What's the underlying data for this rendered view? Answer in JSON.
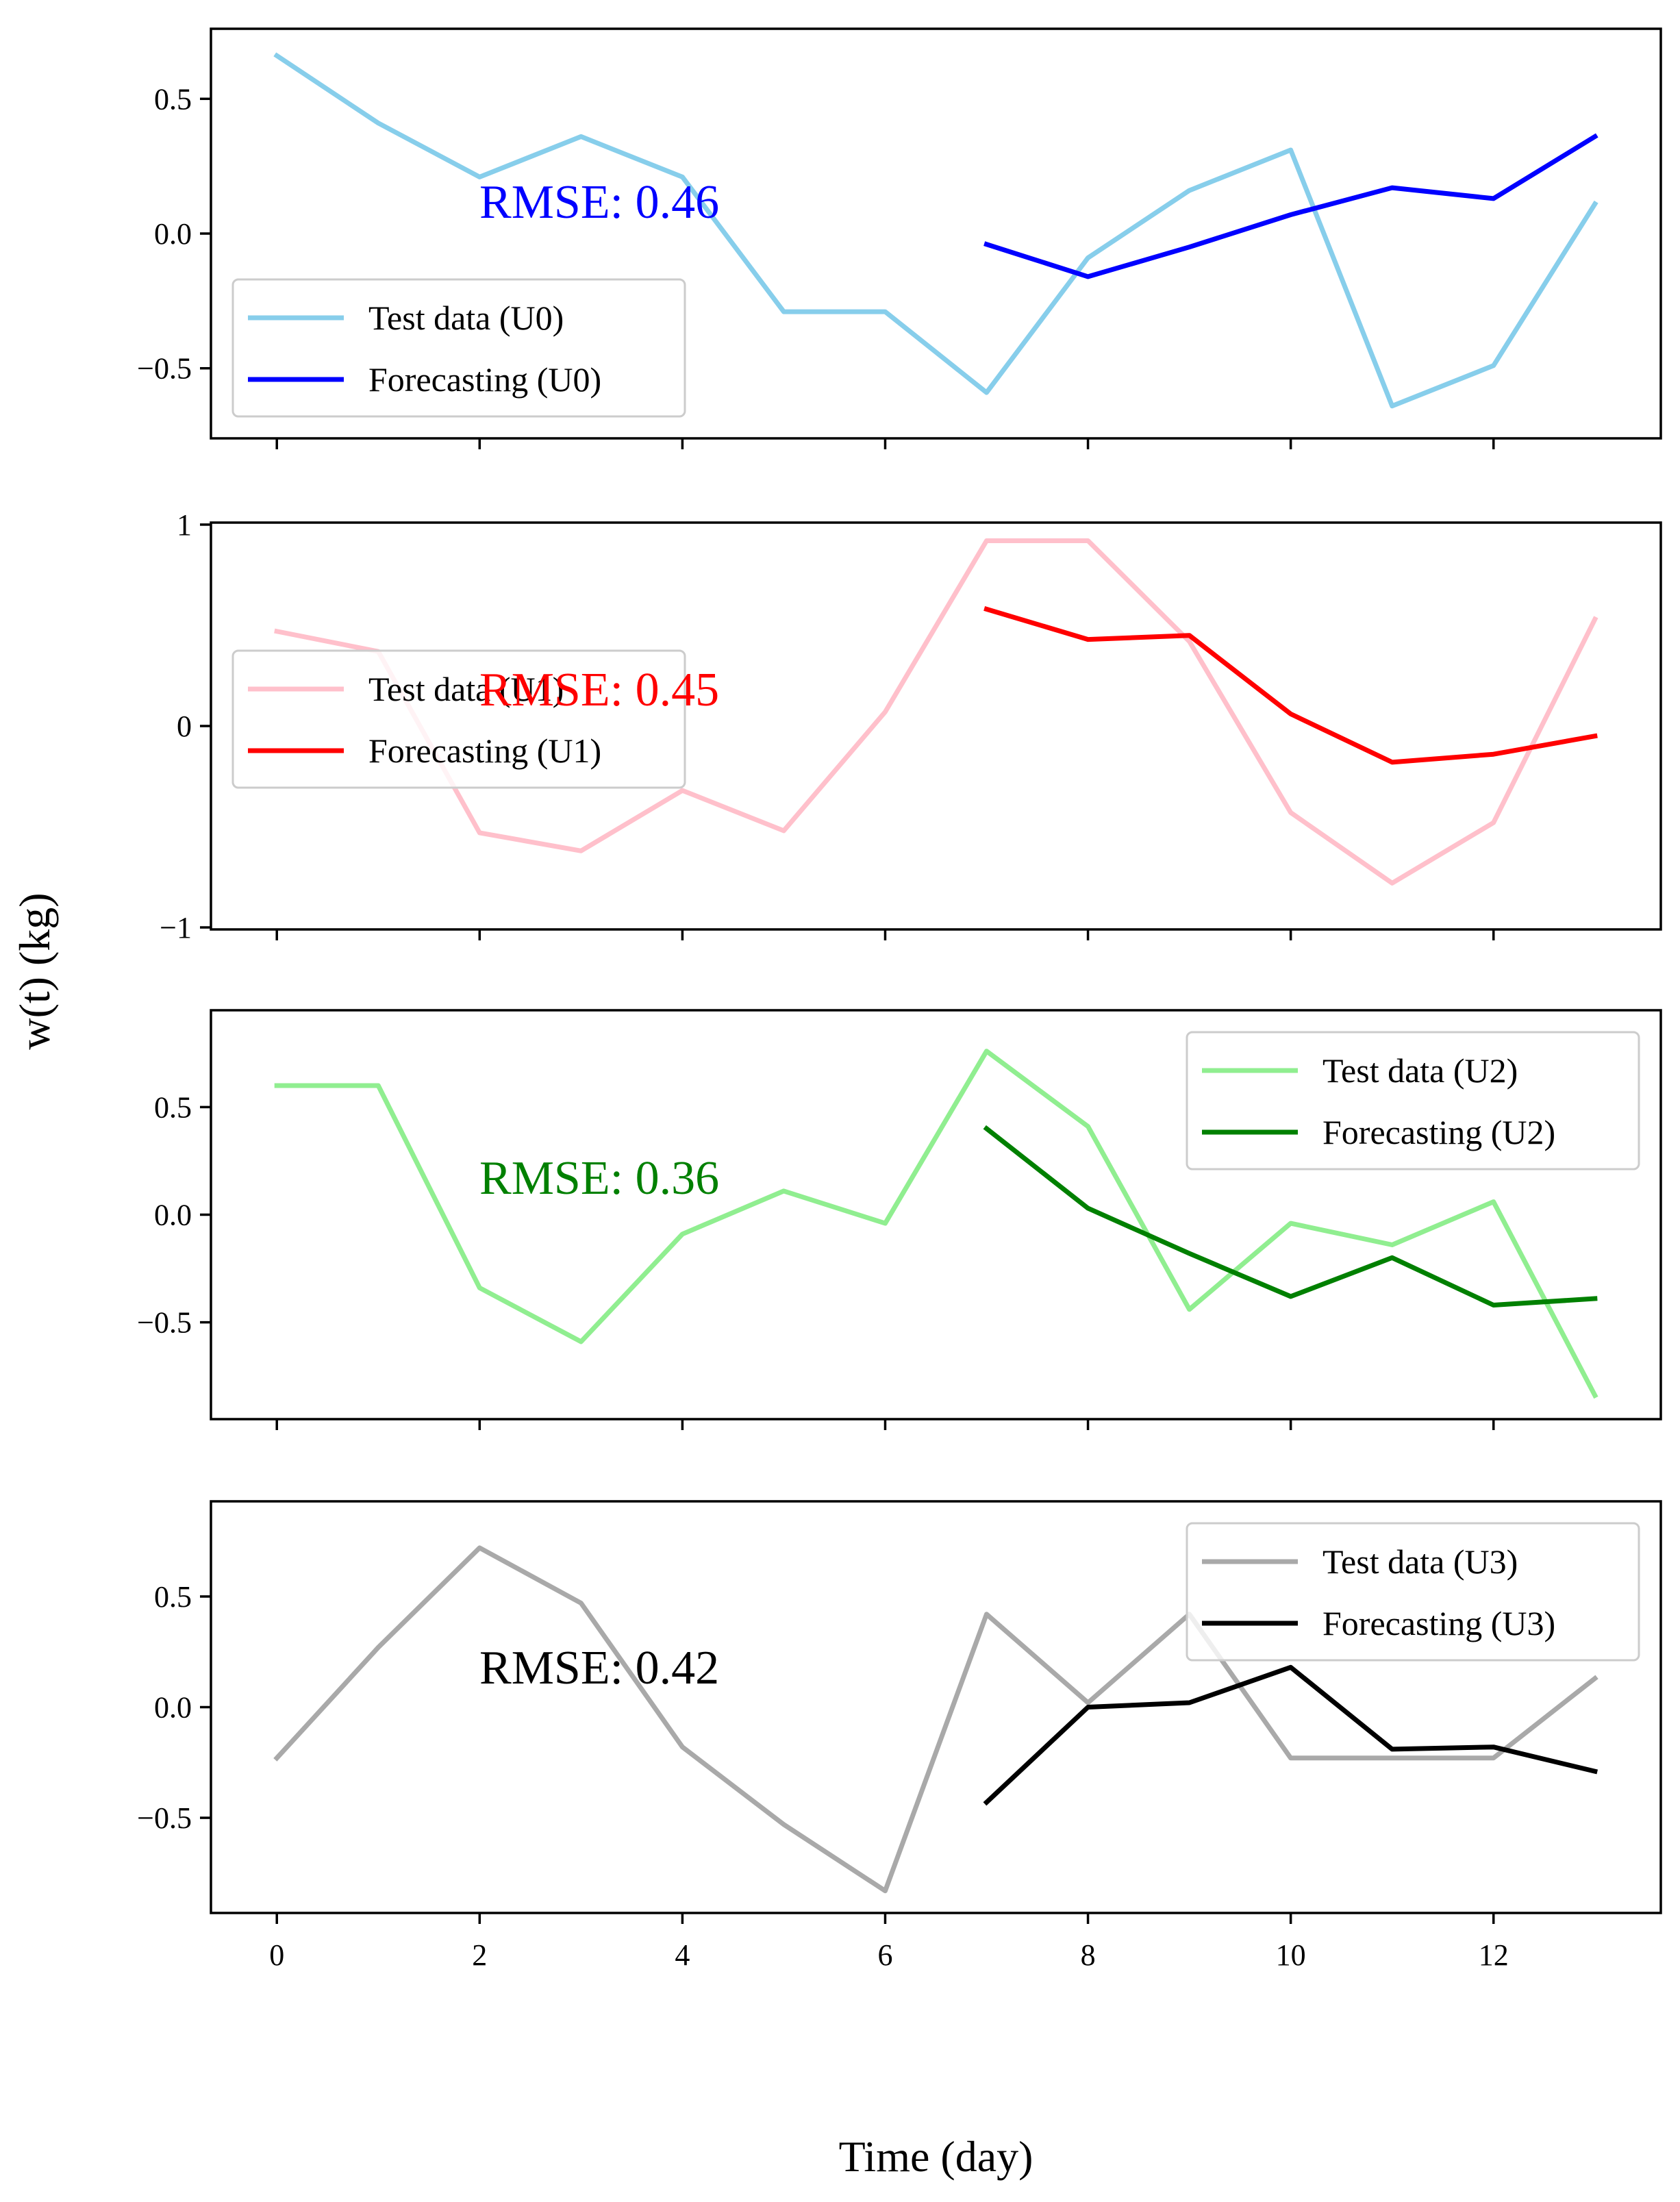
{
  "chart_data": {
    "type": "line",
    "xlabel": "Time (day)",
    "ylabel": "w(t) (kg)",
    "xlim": [
      -0.65,
      13.65
    ],
    "xticks": [
      0,
      2,
      4,
      6,
      8,
      10,
      12
    ],
    "x_test": [
      0,
      1,
      2,
      3,
      4,
      5,
      6,
      7,
      8,
      9,
      10,
      11,
      12,
      13
    ],
    "x_forecast": [
      7,
      8,
      9,
      10,
      11,
      12,
      13
    ],
    "panels": [
      {
        "id": "U0",
        "ylim": [
          -0.76,
          0.76
        ],
        "yticks": [
          0.5,
          0.0,
          -0.5
        ],
        "ytick_labels": [
          "0.5",
          "0.0",
          "−0.5"
        ],
        "rmse_text": "RMSE: 0.46",
        "rmse_color": "#0000ff",
        "legend_position": "lower-left",
        "series": [
          {
            "name": "Test data (U0)",
            "color": "#87ceeb",
            "values": [
              0.66,
              0.41,
              0.21,
              0.36,
              0.21,
              -0.29,
              -0.29,
              -0.59,
              -0.09,
              0.16,
              0.31,
              -0.64,
              -0.49,
              0.11
            ]
          },
          {
            "name": "Forecasting (U0)",
            "color": "#0000ff",
            "values": [
              -0.04,
              -0.16,
              -0.05,
              0.07,
              0.17,
              0.13,
              0.36
            ]
          }
        ]
      },
      {
        "id": "U1",
        "ylim": [
          -1.01,
          1.01
        ],
        "yticks": [
          1,
          0,
          -1
        ],
        "ytick_labels": [
          "1",
          "0",
          "−1"
        ],
        "rmse_text": "RMSE: 0.45",
        "rmse_color": "#ff0000",
        "legend_position": "center-left",
        "series": [
          {
            "name": "Test data (U1)",
            "color": "#ffc0cb",
            "values": [
              0.47,
              0.37,
              -0.53,
              -0.62,
              -0.32,
              -0.52,
              0.07,
              0.92,
              0.92,
              0.42,
              -0.43,
              -0.78,
              -0.48,
              0.53
            ]
          },
          {
            "name": "Forecasting (U1)",
            "color": "#ff0000",
            "values": [
              0.58,
              0.43,
              0.45,
              0.06,
              -0.18,
              -0.14,
              -0.05
            ]
          }
        ]
      },
      {
        "id": "U2",
        "ylim": [
          -0.95,
          0.95
        ],
        "yticks": [
          0.5,
          0.0,
          -0.5
        ],
        "ytick_labels": [
          "0.5",
          "0.0",
          "−0.5"
        ],
        "rmse_text": "RMSE: 0.36",
        "rmse_color": "#008000",
        "legend_position": "upper-right",
        "series": [
          {
            "name": "Test data (U2)",
            "color": "#90ee90",
            "values": [
              0.6,
              0.6,
              -0.34,
              -0.59,
              -0.09,
              0.11,
              -0.04,
              0.76,
              0.41,
              -0.44,
              -0.04,
              -0.14,
              0.06,
              -0.84
            ]
          },
          {
            "name": "Forecasting (U2)",
            "color": "#008000",
            "values": [
              0.4,
              0.03,
              -0.18,
              -0.38,
              -0.2,
              -0.42,
              -0.39
            ]
          }
        ]
      },
      {
        "id": "U3",
        "ylim": [
          -0.93,
          0.93
        ],
        "yticks": [
          0.5,
          0.0,
          -0.5
        ],
        "ytick_labels": [
          "0.5",
          "0.0",
          "−0.5"
        ],
        "rmse_text": "RMSE: 0.42",
        "rmse_color": "#000000",
        "legend_position": "upper-right",
        "series": [
          {
            "name": "Test data (U3)",
            "color": "#a9a9a9",
            "values": [
              -0.23,
              0.27,
              0.72,
              0.47,
              -0.18,
              -0.53,
              -0.83,
              0.42,
              0.02,
              0.42,
              -0.23,
              -0.23,
              -0.23,
              0.13
            ]
          },
          {
            "name": "Forecasting (U3)",
            "color": "#000000",
            "values": [
              -0.43,
              0.0,
              0.02,
              0.18,
              -0.19,
              -0.18,
              -0.29
            ]
          }
        ]
      }
    ]
  }
}
